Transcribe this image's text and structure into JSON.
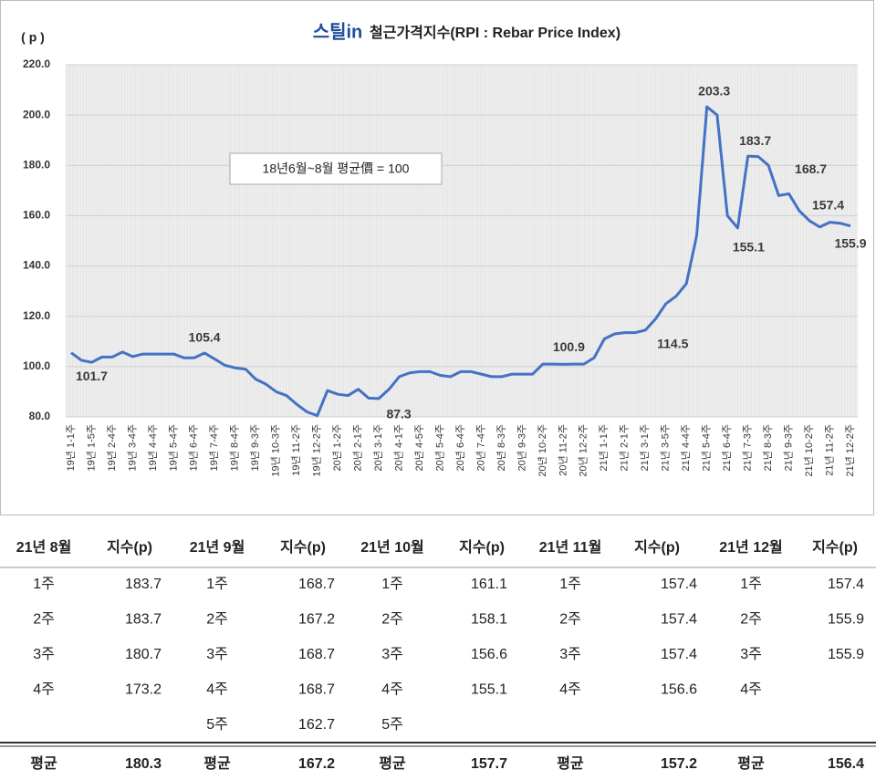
{
  "chart_data": {
    "type": "line",
    "logo": "스틸in",
    "title": "철근가격지수(RPI : Rebar Price Index)",
    "y_label": "( p )",
    "annotation": "18년6월~8월 평균價 = 100",
    "categories": [
      "19년 1-1주",
      null,
      "19년 1-5주",
      null,
      "19년 2-4주",
      null,
      "19년 3-4주",
      null,
      "19년 4-4주",
      null,
      "19년 5-4주",
      null,
      "19년 6-4주",
      null,
      "19년 7-4주",
      null,
      "19년 8-4주",
      null,
      "19년 9-3주",
      null,
      "19년 10-3주",
      null,
      "19년 11-2주",
      null,
      "19년 12-2주",
      null,
      "20년 1-2주",
      null,
      "20년 2-1주",
      null,
      "20년 3-1주",
      null,
      "20년 4-1주",
      null,
      "20년 4-5주",
      null,
      "20년 5-4주",
      null,
      "20년 6-4주",
      null,
      "20년 7-4주",
      null,
      "20년 8-3주",
      null,
      "20년 9-3주",
      null,
      "20년 10-2주",
      null,
      "20년 11-2주",
      null,
      "20년 12-2주",
      null,
      "21년 1-1주",
      null,
      "21년 2-1주",
      null,
      "21년 3-1주",
      null,
      "21년 3-5주",
      null,
      "21년 4-4주",
      null,
      "21년 5-4주",
      null,
      "21년 6-4주",
      null,
      "21년 7-3주",
      null,
      "21년 8-3주",
      null,
      "21년 9-3주",
      null,
      "21년 10-2주",
      null,
      "21년 11-2주",
      null,
      "21년 12-2주"
    ],
    "series": [
      {
        "name": "RPI",
        "color": "#4472c4",
        "values": [
          105.5,
          102.5,
          101.7,
          103.8,
          103.8,
          105.8,
          104,
          105,
          105,
          105,
          105,
          103.5,
          103.5,
          105.4,
          103,
          100.5,
          99.5,
          99,
          95,
          93,
          90,
          88.5,
          85,
          82,
          80.5,
          90.5,
          89,
          88.5,
          91,
          87.5,
          87.3,
          91,
          96,
          97.5,
          98,
          98,
          96.5,
          96,
          98,
          98,
          97,
          96,
          96,
          97,
          97,
          97,
          101,
          101,
          100.9,
          101,
          101,
          103.5,
          111,
          113,
          113.5,
          113.5,
          114.5,
          119,
          125,
          128,
          133,
          152,
          203.3,
          200,
          160,
          155.1,
          183.7,
          183.5,
          180,
          168,
          168.7,
          162,
          158,
          155.5,
          157.4,
          157,
          155.9
        ],
        "value_labels": [
          null,
          null,
          "101.7",
          null,
          null,
          null,
          null,
          null,
          null,
          null,
          null,
          null,
          null,
          "105.4",
          null,
          null,
          null,
          null,
          null,
          null,
          null,
          null,
          null,
          null,
          null,
          null,
          null,
          null,
          null,
          null,
          "87.3",
          null,
          null,
          null,
          null,
          null,
          null,
          null,
          null,
          null,
          null,
          null,
          null,
          null,
          null,
          null,
          null,
          null,
          "100.9",
          null,
          null,
          null,
          null,
          null,
          null,
          null,
          "114.5",
          null,
          null,
          null,
          null,
          null,
          "203.3",
          null,
          null,
          "155.1",
          "183.7",
          null,
          null,
          null,
          "168.7",
          null,
          null,
          null,
          "157.4",
          null,
          "155.9"
        ]
      }
    ],
    "ylim": [
      80,
      220
    ],
    "yticks": [
      {
        "value": 80,
        "label": "80.0"
      },
      {
        "value": 100,
        "label": "100.0"
      },
      {
        "value": 120,
        "label": "120.0"
      },
      {
        "value": 140,
        "label": "140.0"
      },
      {
        "value": 160,
        "label": "160.0"
      },
      {
        "value": 180,
        "label": "180.0"
      },
      {
        "value": 200,
        "label": "200.0"
      },
      {
        "value": 220,
        "label": "220.0"
      }
    ],
    "grid": true
  },
  "table": {
    "header": [
      "21년 8월",
      "지수(p)",
      "21년 9월",
      "지수(p)",
      "21년 10월",
      "지수(p)",
      "21년 11월",
      "지수(p)",
      "21년 12월",
      "지수(p)"
    ],
    "rows": [
      [
        "1주",
        "183.7",
        "1주",
        "168.7",
        "1주",
        "161.1",
        "1주",
        "157.4",
        "1주",
        "157.4"
      ],
      [
        "2주",
        "183.7",
        "2주",
        "167.2",
        "2주",
        "158.1",
        "2주",
        "157.4",
        "2주",
        "155.9"
      ],
      [
        "3주",
        "180.7",
        "3주",
        "168.7",
        "3주",
        "156.6",
        "3주",
        "157.4",
        "3주",
        "155.9"
      ],
      [
        "4주",
        "173.2",
        "4주",
        "168.7",
        "4주",
        "155.1",
        "4주",
        "156.6",
        "4주",
        null
      ],
      [
        null,
        null,
        "5주",
        "162.7",
        "5주",
        null,
        null,
        null,
        null,
        null
      ]
    ],
    "footer": [
      "평균",
      "180.3",
      "평균",
      "167.2",
      "평균",
      "157.7",
      "평균",
      "157.2",
      "평균",
      "156.4"
    ]
  }
}
